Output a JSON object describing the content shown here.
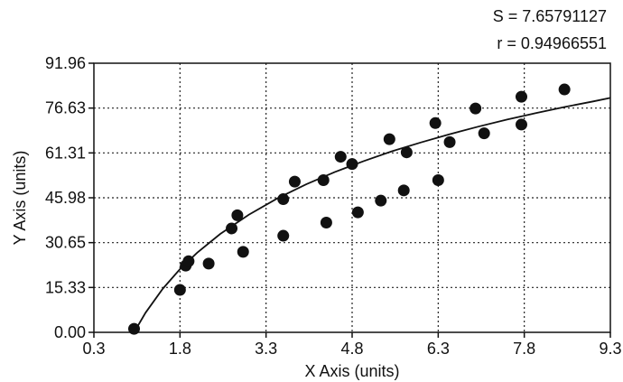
{
  "chart_data": {
    "type": "scatter",
    "title": "",
    "xlabel": "X Axis (units)",
    "ylabel": "Y Axis (units)",
    "xlim": [
      0.3,
      9.3
    ],
    "ylim": [
      0.0,
      91.96
    ],
    "x_ticks": [
      "0.3",
      "1.8",
      "3.3",
      "4.8",
      "6.3",
      "7.8",
      "9.3"
    ],
    "y_ticks": [
      "0.00",
      "15.33",
      "30.65",
      "45.98",
      "61.31",
      "76.63",
      "91.96"
    ],
    "grid": true,
    "grid_style": "dotted",
    "stats": [
      "S = 7.65791127",
      "r = 0.94966551"
    ],
    "series": [
      {
        "marker": "filled-circle",
        "color": "#111111",
        "points": [
          [
            1.0,
            1.2
          ],
          [
            1.8,
            14.5
          ],
          [
            1.9,
            22.8
          ],
          [
            1.95,
            24.3
          ],
          [
            2.3,
            23.5
          ],
          [
            2.7,
            35.5
          ],
          [
            2.8,
            40.0
          ],
          [
            2.9,
            27.5
          ],
          [
            3.6,
            45.5
          ],
          [
            3.6,
            33.0
          ],
          [
            3.8,
            51.5
          ],
          [
            4.3,
            52.0
          ],
          [
            4.35,
            37.5
          ],
          [
            4.6,
            60.0
          ],
          [
            4.8,
            57.5
          ],
          [
            4.9,
            41.0
          ],
          [
            5.3,
            45.0
          ],
          [
            5.45,
            66.0
          ],
          [
            5.7,
            48.5
          ],
          [
            5.75,
            61.5
          ],
          [
            6.25,
            71.5
          ],
          [
            6.3,
            52.0
          ],
          [
            6.5,
            65.0
          ],
          [
            6.95,
            76.5
          ],
          [
            7.1,
            68.0
          ],
          [
            7.75,
            80.5
          ],
          [
            7.75,
            71.0
          ],
          [
            8.5,
            83.0
          ]
        ]
      }
    ],
    "fit_curve": {
      "type": "logarithmic",
      "color": "#111111",
      "points": [
        [
          1.0,
          0.0
        ],
        [
          1.2,
          6.7
        ],
        [
          1.5,
          14.9
        ],
        [
          1.8,
          21.6
        ],
        [
          2.1,
          27.2
        ],
        [
          2.5,
          33.6
        ],
        [
          3.0,
          40.2
        ],
        [
          3.5,
          45.8
        ],
        [
          4.0,
          50.6
        ],
        [
          4.5,
          54.8
        ],
        [
          5.0,
          58.5
        ],
        [
          5.5,
          61.9
        ],
        [
          6.0,
          64.9
        ],
        [
          6.5,
          67.7
        ],
        [
          7.0,
          70.3
        ],
        [
          7.5,
          72.7
        ],
        [
          8.0,
          74.9
        ],
        [
          8.5,
          77.0
        ],
        [
          9.0,
          78.9
        ],
        [
          9.3,
          80.1
        ]
      ]
    }
  }
}
